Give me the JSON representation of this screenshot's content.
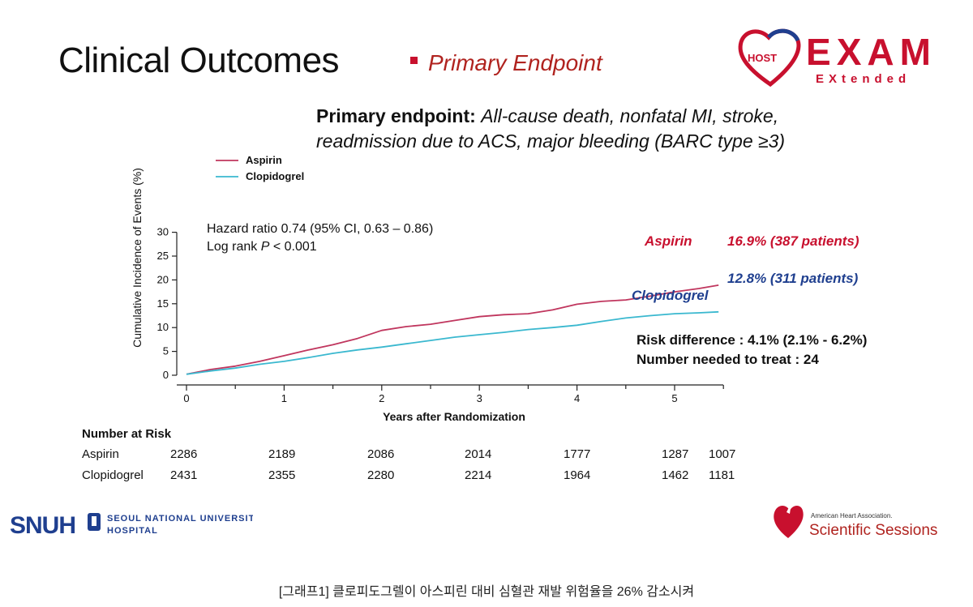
{
  "slide": {
    "title": "Clinical Outcomes",
    "subtitle": "Primary Endpoint",
    "endpoint_label": "Primary endpoint:",
    "endpoint_line1": "All-cause death, nonfatal MI, stroke,",
    "endpoint_line2": "readmission due to ACS, major bleeding (BARC type ≥3)"
  },
  "logos": {
    "host": "HOST",
    "exam": "EXAM",
    "extended": "EXtended",
    "snuh": "SNUH",
    "snuh_line1": "SEOUL NATIONAL UNIVERSITY",
    "snuh_line2": "HOSPITAL",
    "aha_small": "American Heart Association.",
    "aha_big": "Scientific Sessions"
  },
  "stats": {
    "hazard_ratio": "Hazard ratio 0.74 (95% CI, 0.63 – 0.86)",
    "logrank_prefix": "Log rank ",
    "logrank_p": "P",
    "logrank_value": " < 0.001"
  },
  "annotations": {
    "aspirin_label": "Aspirin",
    "aspirin_value": "16.9% (387 patients)",
    "clopidogrel_label": "Clopidogrel",
    "clopidogrel_value": "12.8% (311 patients)",
    "risk_difference": "Risk difference : 4.1% (2.1% - 6.2%)",
    "nnt": "Number needed to treat : 24"
  },
  "risk_table": {
    "header": "Number at Risk",
    "rows": [
      {
        "name": "Aspirin",
        "values": [
          "2286",
          "2189",
          "2086",
          "2014",
          "1777",
          "1287",
          "1007"
        ]
      },
      {
        "name": "Clopidogrel",
        "values": [
          "2431",
          "2355",
          "2280",
          "2214",
          "1964",
          "1462",
          "1181"
        ]
      }
    ]
  },
  "caption": "[그래프1] 클로피도그렐이 아스피린 대비 심혈관 재발 위험율을 26% 감소시켜",
  "colors": {
    "aspirin": "#c0365e",
    "clopidogrel": "#3ab8cf",
    "aspirin_annot": "#c8102e",
    "clopidogrel_annot": "#1f3f8f",
    "title_accent": "#b0231f"
  },
  "chart_data": {
    "type": "line",
    "xlabel": "Years after Randomization",
    "ylabel": "Cumulative Incidence of Events (%)",
    "xlim": [
      0,
      5.5
    ],
    "ylim": [
      0,
      30
    ],
    "xticks": [
      0,
      1,
      2,
      3,
      4,
      5
    ],
    "yticks": [
      0,
      5,
      10,
      15,
      20,
      25,
      30
    ],
    "legend": "top-left",
    "series": [
      {
        "name": "Aspirin",
        "x": [
          0,
          0.25,
          0.5,
          0.75,
          1.0,
          1.25,
          1.5,
          1.75,
          2.0,
          2.25,
          2.5,
          2.75,
          3.0,
          3.25,
          3.5,
          3.75,
          4.0,
          4.25,
          4.5,
          4.75,
          5.0,
          5.25,
          5.45
        ],
        "y": [
          0.2,
          1.2,
          1.9,
          2.9,
          4.1,
          5.3,
          6.4,
          7.7,
          9.4,
          10.2,
          10.7,
          11.5,
          12.3,
          12.7,
          12.9,
          13.7,
          14.9,
          15.5,
          15.8,
          16.6,
          17.5,
          18.2,
          18.9
        ]
      },
      {
        "name": "Clopidogrel",
        "x": [
          0,
          0.25,
          0.5,
          0.75,
          1.0,
          1.25,
          1.5,
          1.75,
          2.0,
          2.25,
          2.5,
          2.75,
          3.0,
          3.25,
          3.5,
          3.75,
          4.0,
          4.25,
          4.5,
          4.75,
          5.0,
          5.25,
          5.45
        ],
        "y": [
          0.2,
          0.9,
          1.5,
          2.3,
          2.9,
          3.7,
          4.6,
          5.3,
          5.9,
          6.6,
          7.3,
          8.0,
          8.5,
          9.0,
          9.6,
          10.0,
          10.5,
          11.3,
          12.0,
          12.5,
          12.9,
          13.1,
          13.3
        ]
      }
    ]
  }
}
